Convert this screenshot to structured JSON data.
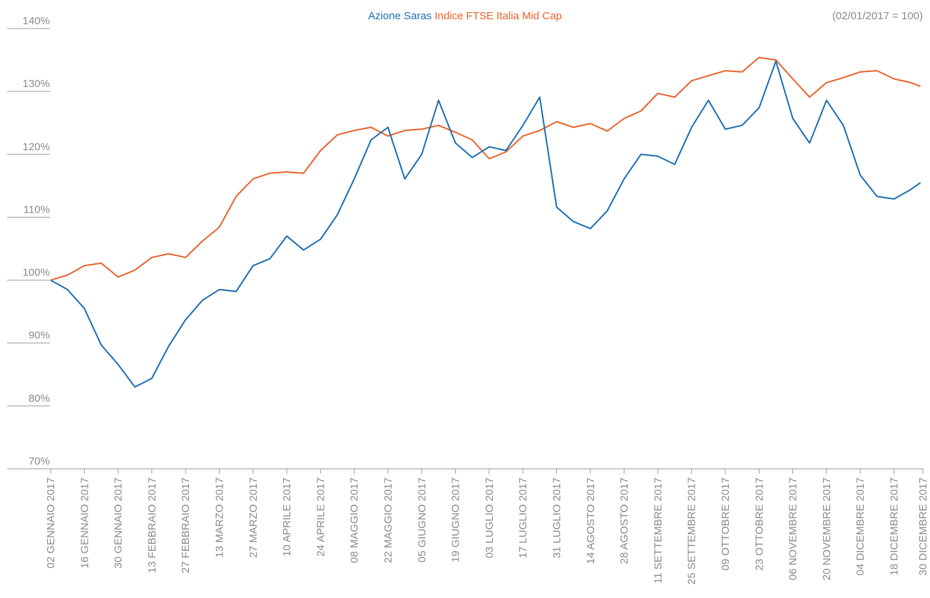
{
  "chart_data": {
    "type": "line",
    "subtitle": "(02/01/2017 = 100)",
    "x": [
      "2017-01-02",
      "2017-01-09",
      "2017-01-16",
      "2017-01-23",
      "2017-01-30",
      "2017-02-06",
      "2017-02-13",
      "2017-02-20",
      "2017-02-27",
      "2017-03-06",
      "2017-03-13",
      "2017-03-20",
      "2017-03-27",
      "2017-04-03",
      "2017-04-10",
      "2017-04-17",
      "2017-04-24",
      "2017-05-01",
      "2017-05-08",
      "2017-05-15",
      "2017-05-22",
      "2017-05-29",
      "2017-06-05",
      "2017-06-12",
      "2017-06-19",
      "2017-06-26",
      "2017-07-03",
      "2017-07-10",
      "2017-07-17",
      "2017-07-24",
      "2017-07-31",
      "2017-08-07",
      "2017-08-14",
      "2017-08-21",
      "2017-08-28",
      "2017-09-04",
      "2017-09-11",
      "2017-09-18",
      "2017-09-25",
      "2017-10-02",
      "2017-10-09",
      "2017-10-16",
      "2017-10-23",
      "2017-10-30",
      "2017-11-06",
      "2017-11-13",
      "2017-11-20",
      "2017-11-27",
      "2017-12-04",
      "2017-12-11",
      "2017-12-18",
      "2017-12-25",
      "2017-12-29"
    ],
    "series": [
      {
        "name": "Azione Saras",
        "color": "#1b6db3",
        "values": [
          100,
          98.5,
          95.5,
          89.7,
          86.6,
          83,
          84.4,
          89.5,
          93.7,
          96.8,
          98.5,
          98.2,
          102.3,
          103.4,
          107,
          104.8,
          106.5,
          110.4,
          116.1,
          122.3,
          124.3,
          116.1,
          120,
          128.6,
          121.8,
          119.5,
          121.2,
          120.6,
          124.6,
          129.1,
          111.6,
          109.3,
          108.2,
          111,
          116.1,
          120,
          119.7,
          118.4,
          124.3,
          128.6,
          124,
          124.6,
          127.4,
          134.8,
          125.7,
          121.8,
          128.6,
          124.6,
          116.7,
          113.3,
          112.9,
          114.4,
          115.5
        ]
      },
      {
        "name": "Indice FTSE Italia Mid Cap",
        "color": "#e8622a",
        "values": [
          100,
          100.8,
          102.3,
          102.7,
          100.5,
          101.6,
          103.6,
          104.2,
          103.6,
          106.2,
          108.4,
          113.3,
          116.1,
          117,
          117.2,
          117,
          120.6,
          123.1,
          123.8,
          124.3,
          122.9,
          123.8,
          124,
          124.6,
          123.5,
          122.3,
          119.3,
          120.4,
          122.9,
          123.8,
          125.2,
          124.3,
          124.9,
          123.7,
          125.7,
          126.9,
          129.7,
          129.1,
          131.7,
          132.5,
          133.3,
          133.1,
          135.4,
          135,
          132,
          129.1,
          131.4,
          132.2,
          133.1,
          133.3,
          132,
          131.4,
          130.8
        ]
      }
    ],
    "ylim": [
      70,
      140
    ],
    "yticks": [
      {
        "value": 70,
        "label": "70%"
      },
      {
        "value": 80,
        "label": "80%"
      },
      {
        "value": 90,
        "label": "90%"
      },
      {
        "value": 100,
        "label": "100%"
      },
      {
        "value": 110,
        "label": "110%"
      },
      {
        "value": 120,
        "label": "120%"
      },
      {
        "value": 130,
        "label": "130%"
      },
      {
        "value": 140,
        "label": "140%"
      }
    ],
    "xlim": [
      "2017-01-02",
      "2017-12-30"
    ],
    "xticks": [
      {
        "value": "2017-01-02",
        "label": "02 GENNAIO 2017"
      },
      {
        "value": "2017-01-16",
        "label": "16 GENNAIO 2017"
      },
      {
        "value": "2017-01-30",
        "label": "30 GENNAIO 2017"
      },
      {
        "value": "2017-02-13",
        "label": "13 FEBBRAIO 2017"
      },
      {
        "value": "2017-02-27",
        "label": "27 FEBBRAIO 2017"
      },
      {
        "value": "2017-03-13",
        "label": "13 MARZO 2017"
      },
      {
        "value": "2017-03-27",
        "label": "27 MARZO 2017"
      },
      {
        "value": "2017-04-10",
        "label": "10 APRILE 2017"
      },
      {
        "value": "2017-04-24",
        "label": "24 APRILE 2017"
      },
      {
        "value": "2017-05-08",
        "label": "08 MAGGIO 2017"
      },
      {
        "value": "2017-05-22",
        "label": "22 MAGGIO 2017"
      },
      {
        "value": "2017-06-05",
        "label": "05 GIUGNO 2017"
      },
      {
        "value": "2017-06-19",
        "label": "19 GIUGNO 2017"
      },
      {
        "value": "2017-07-03",
        "label": "03 LUGLIO 2017"
      },
      {
        "value": "2017-07-17",
        "label": "17 LUGLIO 2017"
      },
      {
        "value": "2017-07-31",
        "label": "31 LUGLIO 2017"
      },
      {
        "value": "2017-08-14",
        "label": "14 AGOSTO 2017"
      },
      {
        "value": "2017-08-28",
        "label": "28 AGOSTO 2017"
      },
      {
        "value": "2017-09-11",
        "label": "11 SETTEMBRE 2017"
      },
      {
        "value": "2017-09-25",
        "label": "25 SETTEMBRE 2017"
      },
      {
        "value": "2017-10-09",
        "label": "09 OTTOBRE 2017"
      },
      {
        "value": "2017-10-23",
        "label": "23 OTTOBRE 2017"
      },
      {
        "value": "2017-11-06",
        "label": "06 NOVEMBRE 2017"
      },
      {
        "value": "2017-11-20",
        "label": "20 NOVEMBRE 2017"
      },
      {
        "value": "2017-12-04",
        "label": "04 DICEMBRE 2017"
      },
      {
        "value": "2017-12-18",
        "label": "18 DICEMBRE 2017"
      },
      {
        "value": "2017-12-30",
        "label": "30 DICEMBRE 2017"
      }
    ],
    "legend": "top"
  }
}
